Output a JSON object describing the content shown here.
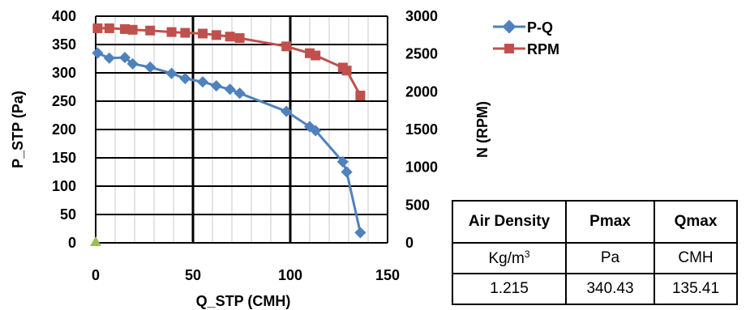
{
  "chart_data": {
    "type": "line",
    "xlabel": "Q_STP (CMH)",
    "ylabel": "P_STP (Pa)",
    "y2label": "N (RPM)",
    "xlim": [
      0,
      150
    ],
    "ylim": [
      0,
      400
    ],
    "y2lim": [
      0,
      3000
    ],
    "x_ticks": [
      "0",
      "50",
      "100",
      "150"
    ],
    "y_ticks": [
      "0",
      "50",
      "100",
      "150",
      "200",
      "250",
      "300",
      "350",
      "400"
    ],
    "y2_ticks": [
      "0",
      "500",
      "1000",
      "1500",
      "2000",
      "2500",
      "3000"
    ],
    "grid": true,
    "legend": "top-right",
    "series": [
      {
        "name": "P-Q",
        "axis": "left",
        "color": "#4F81BD",
        "marker": "diamond",
        "x": [
          1,
          7,
          15,
          19,
          28,
          39,
          46,
          55,
          62,
          69,
          74,
          98,
          110,
          113,
          127,
          129,
          136
        ],
        "y": [
          335,
          326,
          327,
          316,
          310,
          299,
          290,
          284,
          277,
          271,
          264,
          232,
          205,
          198,
          143,
          125,
          18
        ]
      },
      {
        "name": "RPM",
        "axis": "right",
        "color": "#C0504D",
        "marker": "square",
        "x": [
          1,
          7,
          15,
          19,
          28,
          39,
          46,
          55,
          62,
          69,
          74,
          98,
          110,
          113,
          127,
          129,
          136
        ],
        "y": [
          2840,
          2840,
          2830,
          2820,
          2810,
          2790,
          2780,
          2770,
          2750,
          2730,
          2710,
          2600,
          2510,
          2480,
          2320,
          2280,
          1950
        ]
      }
    ],
    "extra_point": {
      "x": 0,
      "y": 0,
      "color": "#9BBB59",
      "marker": "triangle"
    }
  },
  "table": {
    "headers": [
      "Air Density",
      "Pmax",
      "Qmax"
    ],
    "units": [
      "Kg/m",
      "Pa",
      "CMH"
    ],
    "unit_superscript": "3",
    "values": [
      "1.215",
      "340.43",
      "135.41"
    ]
  }
}
